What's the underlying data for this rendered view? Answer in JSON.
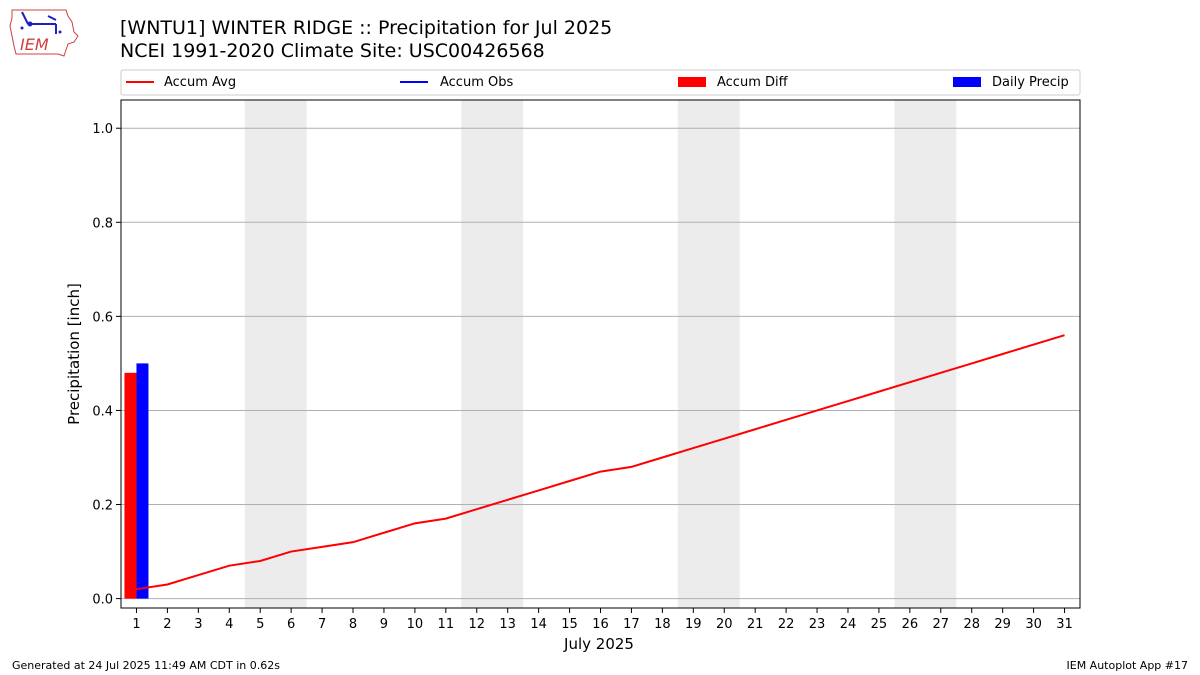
{
  "header": {
    "logo_text": "IEM",
    "title_line1": "[WNTU1] WINTER RIDGE :: Precipitation for Jul 2025",
    "title_line2": "NCEI 1991-2020 Climate Site: USC00426568"
  },
  "footer": {
    "generated": "Generated at 24 Jul 2025 11:49 AM CDT in 0.62s",
    "app": "IEM Autoplot App #17"
  },
  "colors": {
    "accum_avg": "#ff0000",
    "accum_obs": "#0000ff",
    "accum_diff": "#ff0000",
    "daily_precip": "#0000ff",
    "weekend_band": "#ececec",
    "grid": "#b0b0b0"
  },
  "chart_data": {
    "type": "line",
    "xlabel": "July 2025",
    "ylabel": "Precipitation [inch]",
    "x": [
      1,
      2,
      3,
      4,
      5,
      6,
      7,
      8,
      9,
      10,
      11,
      12,
      13,
      14,
      15,
      16,
      17,
      18,
      19,
      20,
      21,
      22,
      23,
      24,
      25,
      26,
      27,
      28,
      29,
      30,
      31
    ],
    "xlim": [
      0.5,
      31.5
    ],
    "ylim": [
      -0.02,
      1.06
    ],
    "yticks": [
      0.0,
      0.2,
      0.4,
      0.6,
      0.8,
      1.0
    ],
    "ytick_labels": [
      "0.0",
      "0.2",
      "0.4",
      "0.6",
      "0.8",
      "1.0"
    ],
    "grid": "horizontal",
    "legend_position": "top",
    "weekend_bands": [
      [
        4.5,
        6.5
      ],
      [
        11.5,
        13.5
      ],
      [
        18.5,
        20.5
      ],
      [
        25.5,
        27.5
      ]
    ],
    "series": [
      {
        "name": "Accum Avg",
        "kind": "line",
        "color": "#ff0000",
        "x": [
          1,
          2,
          3,
          4,
          5,
          6,
          7,
          8,
          9,
          10,
          11,
          12,
          13,
          14,
          15,
          16,
          17,
          18,
          19,
          20,
          21,
          22,
          23,
          24,
          25,
          26,
          27,
          28,
          29,
          30,
          31
        ],
        "values": [
          0.02,
          0.03,
          0.05,
          0.07,
          0.08,
          0.1,
          0.11,
          0.12,
          0.14,
          0.16,
          0.17,
          0.19,
          0.21,
          0.23,
          0.25,
          0.27,
          0.28,
          0.3,
          0.32,
          0.34,
          0.36,
          0.38,
          0.4,
          0.42,
          0.44,
          0.46,
          0.48,
          0.5,
          0.52,
          0.54,
          0.56
        ]
      },
      {
        "name": "Accum Obs",
        "kind": "line",
        "color": "#0000ff",
        "x": [
          1
        ],
        "values": [
          0.5
        ]
      },
      {
        "name": "Accum Diff",
        "kind": "bar",
        "color": "#ff0000",
        "x": [
          1
        ],
        "values": [
          0.48
        ]
      },
      {
        "name": "Daily Precip",
        "kind": "bar",
        "color": "#0000ff",
        "x": [
          1
        ],
        "values": [
          0.5
        ]
      }
    ]
  }
}
